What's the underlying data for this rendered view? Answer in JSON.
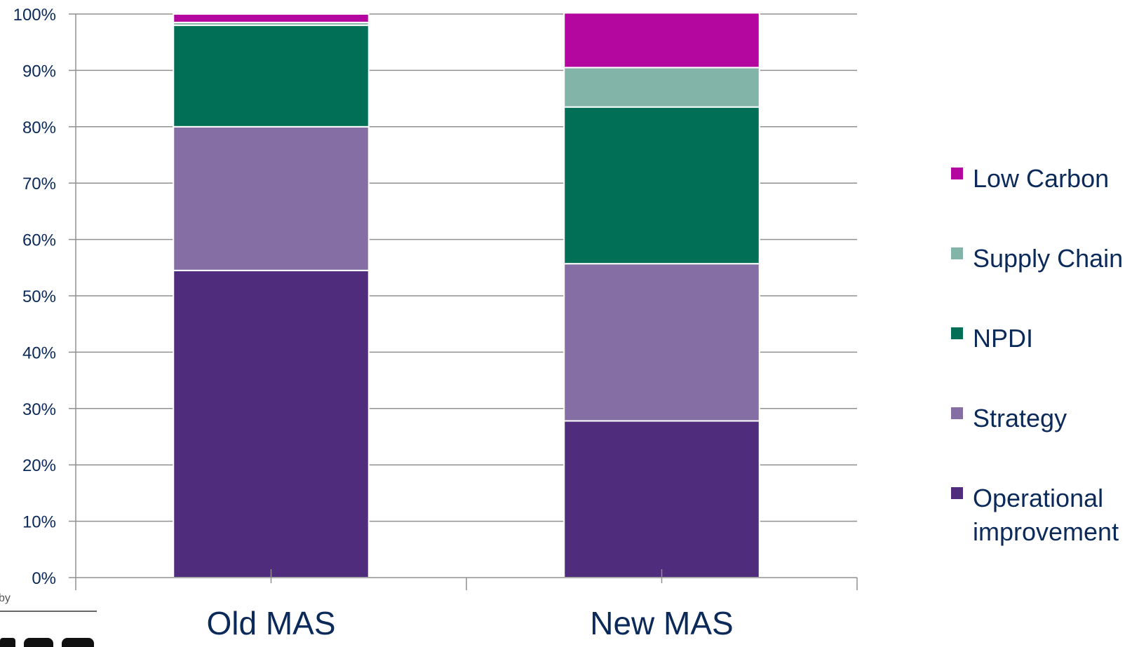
{
  "chart_data": {
    "type": "bar",
    "stacked": "percent",
    "categories": [
      "Old MAS",
      "New MAS"
    ],
    "series": [
      {
        "name": "Operational improvement",
        "values": [
          54.5,
          27.8
        ]
      },
      {
        "name": "Strategy",
        "values": [
          25.5,
          27.9
        ]
      },
      {
        "name": "NPDI",
        "values": [
          18.0,
          27.8
        ]
      },
      {
        "name": "Supply Chain",
        "values": [
          0.5,
          7.0
        ]
      },
      {
        "name": "Low Carbon",
        "values": [
          1.5,
          9.7
        ]
      }
    ],
    "yticks": [
      "0%",
      "10%",
      "20%",
      "30%",
      "40%",
      "50%",
      "60%",
      "70%",
      "80%",
      "90%",
      "100%"
    ],
    "ylim": [
      0,
      100
    ],
    "grid": true,
    "legend_position": "right",
    "legend": [
      "Low Carbon",
      "Supply Chain",
      "NPDI",
      "Strategy",
      "Operational improvement"
    ],
    "legend_lines": [
      [
        "Low Carbon"
      ],
      [
        "Supply Chain"
      ],
      [
        "NPDI"
      ],
      [
        "Strategy"
      ],
      [
        "Operational",
        "improvement"
      ]
    ],
    "colors": {
      "Operational improvement": "#4f2d7c",
      "Strategy": "#856ea4",
      "NPDI": "#016f56",
      "Supply Chain": "#82b5a8",
      "Low Carbon": "#b4079f"
    }
  },
  "fragments": {
    "corner_text": "by"
  }
}
